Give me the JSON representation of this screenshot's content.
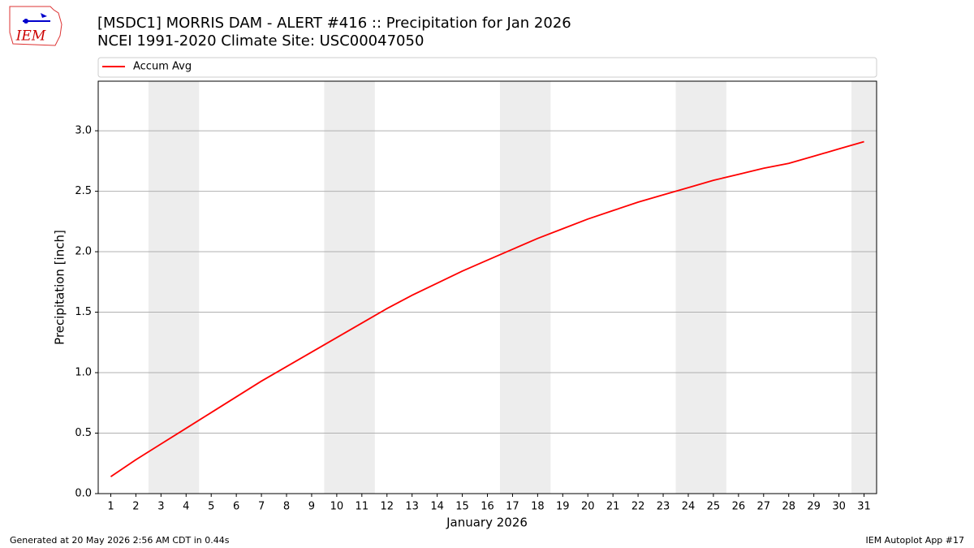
{
  "logo_text": "IEM",
  "chart_data": {
    "type": "line",
    "title": "[MSDC1] MORRIS DAM - ALERT #416 :: Precipitation for Jan 2026",
    "subtitle": "NCEI 1991-2020 Climate Site: USC00047050",
    "x_label": "January 2026",
    "y_label": "Precipitation [inch]",
    "x": [
      1,
      2,
      3,
      4,
      5,
      6,
      7,
      8,
      9,
      10,
      11,
      12,
      13,
      14,
      15,
      16,
      17,
      18,
      19,
      20,
      21,
      22,
      23,
      24,
      25,
      26,
      27,
      28,
      29,
      30,
      31
    ],
    "series": [
      {
        "name": "Accum Avg",
        "color": "#ff0000",
        "values": [
          0.14,
          0.28,
          0.41,
          0.54,
          0.67,
          0.8,
          0.93,
          1.05,
          1.17,
          1.29,
          1.41,
          1.53,
          1.64,
          1.74,
          1.84,
          1.93,
          2.02,
          2.11,
          2.19,
          2.27,
          2.34,
          2.41,
          2.47,
          2.53,
          2.59,
          2.64,
          2.69,
          2.73,
          2.79,
          2.85,
          2.91
        ]
      }
    ],
    "weekend_days": [
      3,
      4,
      10,
      11,
      17,
      18,
      24,
      25,
      31
    ],
    "xlim": [
      0.5,
      31.5
    ],
    "ylim": [
      0,
      3.41
    ],
    "xticks": [
      1,
      2,
      3,
      4,
      5,
      6,
      7,
      8,
      9,
      10,
      11,
      12,
      13,
      14,
      15,
      16,
      17,
      18,
      19,
      20,
      21,
      22,
      23,
      24,
      25,
      26,
      27,
      28,
      29,
      30,
      31
    ],
    "yticks": [
      {
        "value": 0,
        "label": "0.0"
      },
      0.5,
      {
        "value": 1,
        "label": "1.0"
      },
      1.5,
      {
        "value": 2,
        "label": "2.0"
      },
      2.5,
      {
        "value": 3,
        "label": "3.0"
      }
    ],
    "grid": true,
    "legend": "top"
  },
  "footer": {
    "left": "Generated at 20 May 2026 2:56 AM CDT in 0.44s",
    "right": "IEM Autoplot App #17"
  }
}
